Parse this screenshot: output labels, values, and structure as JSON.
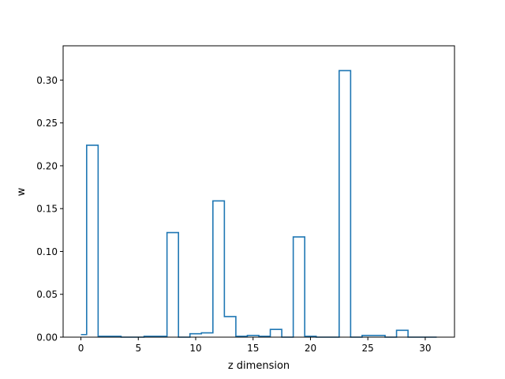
{
  "chart_data": {
    "type": "step",
    "title": "",
    "xlabel": "z dimension",
    "ylabel": "w",
    "xlim": [
      -1.55,
      32.55
    ],
    "ylim": [
      0,
      0.34
    ],
    "xticks": [
      0,
      5,
      10,
      15,
      20,
      25,
      30
    ],
    "yticks": [
      0.0,
      0.05,
      0.1,
      0.15,
      0.2,
      0.25,
      0.3
    ],
    "xtick_labels": [
      "0",
      "5",
      "10",
      "15",
      "20",
      "25",
      "30"
    ],
    "ytick_labels": [
      "0.00",
      "0.05",
      "0.10",
      "0.15",
      "0.20",
      "0.25",
      "0.30"
    ],
    "step_where": "mid",
    "grid": false,
    "series": [
      {
        "color": "#1f77b4",
        "x": [
          0,
          1,
          2,
          3,
          4,
          5,
          6,
          7,
          8,
          9,
          10,
          11,
          12,
          13,
          14,
          15,
          16,
          17,
          18,
          19,
          20,
          21,
          22,
          23,
          24,
          25,
          26,
          27,
          28,
          29,
          30,
          31
        ],
        "y": [
          0.003,
          0.224,
          0.001,
          0.001,
          0.0,
          0.0,
          0.001,
          0.001,
          0.122,
          0.0,
          0.004,
          0.005,
          0.159,
          0.024,
          0.001,
          0.002,
          0.001,
          0.009,
          0.0,
          0.117,
          0.001,
          0.0,
          0.0,
          0.311,
          0.0,
          0.002,
          0.002,
          0.0,
          0.008,
          0.0,
          0.0,
          0.0
        ]
      }
    ]
  }
}
